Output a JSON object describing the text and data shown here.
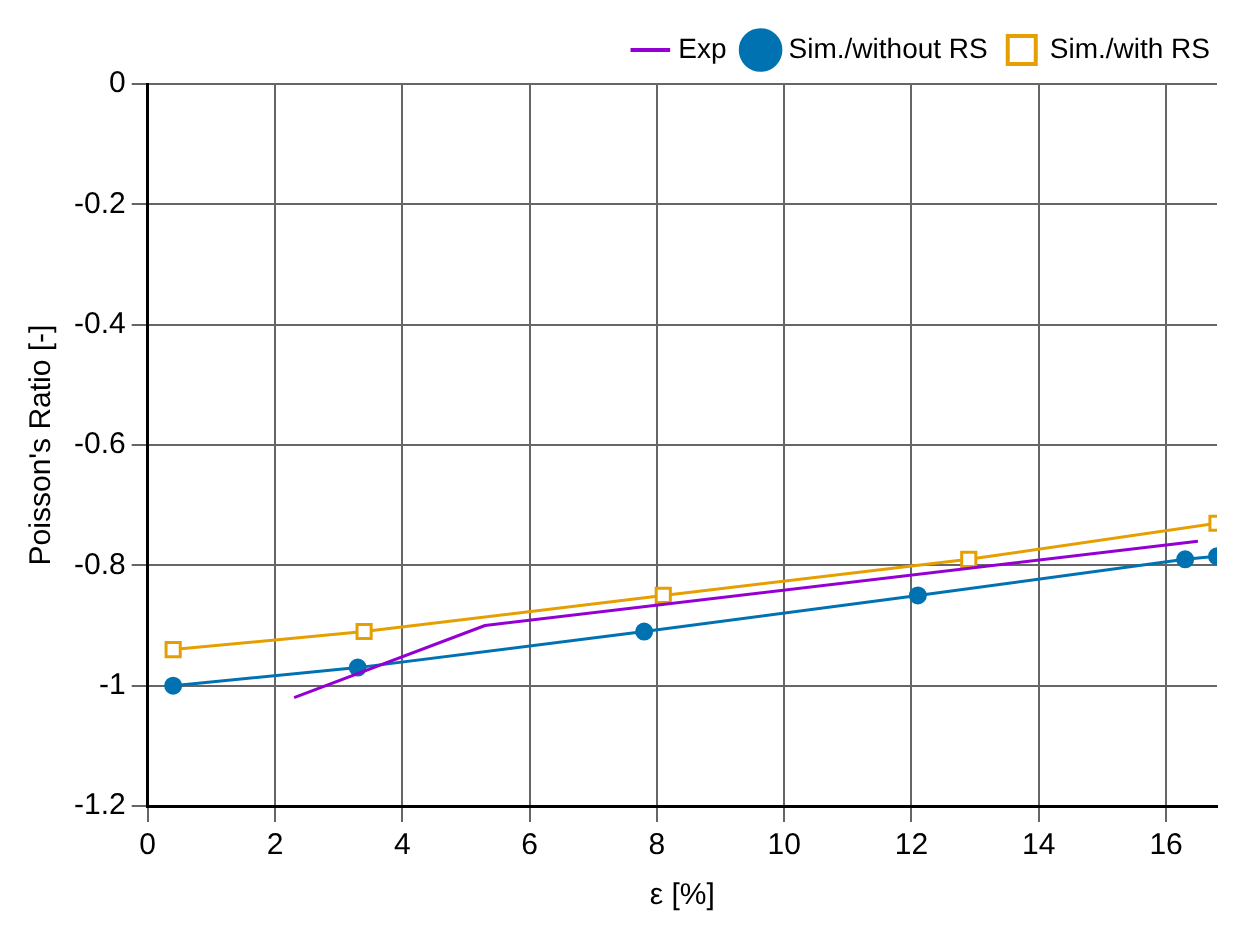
{
  "chart_data": {
    "type": "line",
    "xlabel": "ε [%]",
    "ylabel": "Poisson's Ratio [-]",
    "xlim": [
      0,
      16.8
    ],
    "xticks": [
      0,
      2,
      4,
      6,
      8,
      10,
      12,
      14,
      16
    ],
    "ylim": [
      -1.2,
      0
    ],
    "yticks": [
      -1.2,
      -1,
      -0.8,
      -0.6,
      -0.4,
      -0.2,
      0
    ],
    "grid": true,
    "legend": "top right",
    "series": [
      {
        "name": "Exp",
        "color": "#9400d3",
        "marker": "none",
        "x": [
          2.3,
          5.3,
          16.5
        ],
        "values": [
          -1.02,
          -0.9,
          -0.76
        ]
      },
      {
        "name": "Sim./without RS",
        "color": "#0072b2",
        "marker": "circle",
        "x": [
          0.4,
          3.3,
          7.8,
          12.1,
          16.3,
          16.8
        ],
        "values": [
          -1.0,
          -0.97,
          -0.91,
          -0.85,
          -0.79,
          -0.785
        ]
      },
      {
        "name": "Sim./with RS",
        "color": "#e69f00",
        "marker": "square",
        "x": [
          0.4,
          3.4,
          8.1,
          12.9,
          16.8
        ],
        "values": [
          -0.94,
          -0.91,
          -0.85,
          -0.79,
          -0.73
        ]
      }
    ]
  }
}
